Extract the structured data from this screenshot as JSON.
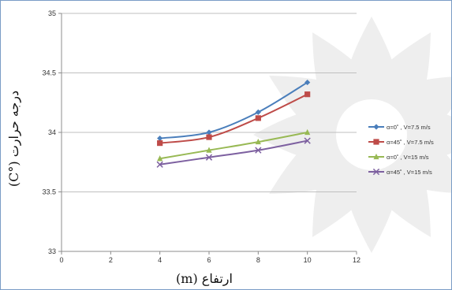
{
  "chart_data": {
    "type": "line",
    "title": "",
    "xlabel": "ارتفاع (m)",
    "ylabel": "درجه حرارت (°C)",
    "xlim": [
      0,
      12
    ],
    "ylim": [
      33,
      35
    ],
    "x_ticks": [
      0,
      2,
      4,
      6,
      8,
      10,
      12
    ],
    "y_ticks": [
      33,
      33.5,
      34,
      34.5,
      35
    ],
    "x_tick_labels": [
      "0",
      "2",
      "4",
      "6",
      "8",
      "10",
      "12"
    ],
    "y_tick_labels": [
      "33",
      "33.5",
      "34",
      "34.5",
      "35"
    ],
    "grid": "horizontal",
    "legend_position": "right",
    "x": [
      4,
      6,
      8,
      10
    ],
    "series": [
      {
        "name": "α=0˚ , V=7.5 m/s",
        "values": [
          33.95,
          34.0,
          34.17,
          34.42
        ],
        "color": "#4a7ebb",
        "marker": "diamond"
      },
      {
        "name": "α=45˚ , V=7.5 m/s",
        "values": [
          33.91,
          33.96,
          34.12,
          34.32
        ],
        "color": "#be4b48",
        "marker": "square"
      },
      {
        "name": "α=0˚ , V=15 m/s",
        "values": [
          33.78,
          33.85,
          33.92,
          34.0
        ],
        "color": "#98b954",
        "marker": "triangle"
      },
      {
        "name": "α=45˚ , V=15 m/s",
        "values": [
          33.73,
          33.79,
          33.85,
          33.93
        ],
        "color": "#7d60a0",
        "marker": "x"
      }
    ]
  }
}
